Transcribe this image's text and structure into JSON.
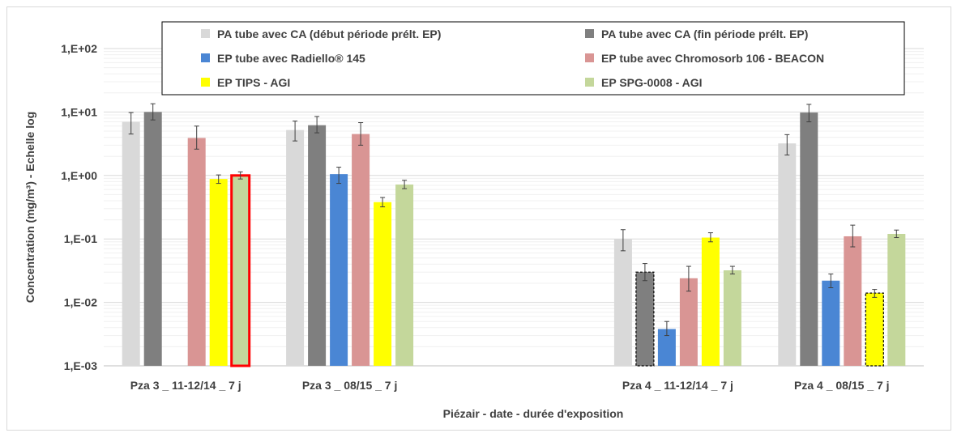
{
  "chart_data": {
    "type": "bar",
    "ylabel": "Concentration (mg/m³) - Echelle log",
    "xlabel": "Piézair - date - durée d'exposition",
    "y_scale": "log",
    "ylim": [
      0.001,
      100
    ],
    "y_ticks": [
      "1,E-03",
      "1,E-02",
      "1,E-01",
      "1,E+00",
      "1,E+01",
      "1,E+02"
    ],
    "legend_position": "top",
    "categories": [
      "Pza 3 _ 11-12/14 _ 7 j",
      "Pza 3 _ 08/15 _ 7 j",
      "",
      "Pza 4 _ 11-12/14 _ 7 j",
      "Pza 4 _ 08/15 _ 7 j"
    ],
    "series": [
      {
        "name": "PA tube avec CA (début période prélt. EP)",
        "color": "#d9d9d9",
        "values": [
          7.0,
          5.2,
          null,
          0.1,
          3.2
        ],
        "err_low": [
          4.5,
          3.5,
          null,
          0.065,
          2.1
        ],
        "err_high": [
          9.8,
          7.2,
          null,
          0.14,
          4.4
        ]
      },
      {
        "name": "PA tube avec CA (fin période prélt. EP)",
        "color": "#7f7f7f",
        "values": [
          10.0,
          6.2,
          null,
          0.03,
          9.8
        ],
        "err_low": [
          7.5,
          4.7,
          null,
          0.022,
          7.0
        ],
        "err_high": [
          13.5,
          8.5,
          null,
          0.041,
          13.2
        ],
        "dashed": [
          false,
          false,
          false,
          true,
          false
        ]
      },
      {
        "name": "EP tube avec Radiello® 145",
        "color": "#4a86d4",
        "values": [
          null,
          1.05,
          null,
          0.0038,
          0.022
        ],
        "err_low": [
          null,
          0.75,
          null,
          0.003,
          0.017
        ],
        "err_high": [
          null,
          1.35,
          null,
          0.005,
          0.028
        ]
      },
      {
        "name": "EP tube avec Chromosorb 106 - BEACON",
        "color": "#d99594",
        "values": [
          3.9,
          4.5,
          null,
          0.024,
          0.11
        ],
        "err_low": [
          2.6,
          3.0,
          null,
          0.015,
          0.075
        ],
        "err_high": [
          6.0,
          6.8,
          null,
          0.037,
          0.165
        ]
      },
      {
        "name": "EP TIPS - AGI",
        "color": "#ffff00",
        "values": [
          0.88,
          0.38,
          null,
          0.105,
          0.014
        ],
        "err_low": [
          0.75,
          0.32,
          null,
          0.09,
          0.012
        ],
        "err_high": [
          1.02,
          0.45,
          null,
          0.125,
          0.016
        ],
        "dashed": [
          false,
          false,
          false,
          false,
          true
        ]
      },
      {
        "name": "EP SPG-0008 - AGI",
        "color": "#c4d79b",
        "values": [
          1.0,
          0.72,
          null,
          0.032,
          0.12
        ],
        "err_low": [
          0.88,
          0.62,
          null,
          0.028,
          0.105
        ],
        "err_high": [
          1.14,
          0.84,
          null,
          0.037,
          0.138
        ],
        "highlight": [
          true,
          false,
          false,
          false,
          false
        ]
      }
    ]
  }
}
